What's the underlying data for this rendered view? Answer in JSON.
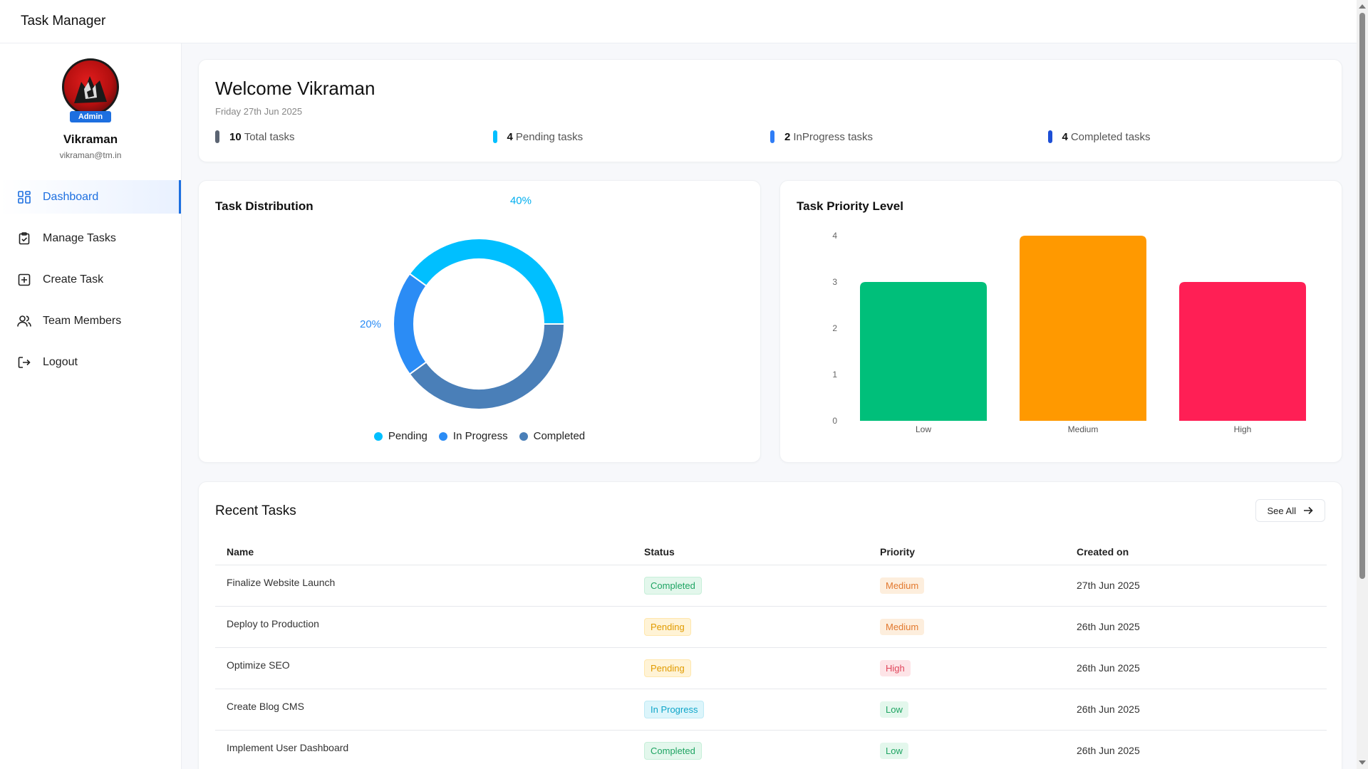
{
  "app": {
    "title": "Task Manager"
  },
  "profile": {
    "badge": "Admin",
    "name": "Vikraman",
    "email": "vikraman@tm.in"
  },
  "nav": [
    {
      "label": "Dashboard",
      "icon": "dashboard-grid-icon",
      "active": true
    },
    {
      "label": "Manage Tasks",
      "icon": "clipboard-check-icon",
      "active": false
    },
    {
      "label": "Create Task",
      "icon": "plus-square-icon",
      "active": false
    },
    {
      "label": "Team Members",
      "icon": "users-icon",
      "active": false
    },
    {
      "label": "Logout",
      "icon": "logout-icon",
      "active": false
    }
  ],
  "welcome": {
    "heading": "Welcome Vikraman",
    "date": "Friday 27th Jun 2025",
    "stats": [
      {
        "count": "10",
        "label": "Total tasks",
        "color": "#5b6472"
      },
      {
        "count": "4",
        "label": "Pending tasks",
        "color": "#00bfff"
      },
      {
        "count": "2",
        "label": "InProgress tasks",
        "color": "#2f7df6"
      },
      {
        "count": "4",
        "label": "Completed tasks",
        "color": "#1d4fd6"
      }
    ]
  },
  "distribution": {
    "title": "Task Distribution",
    "chart_data": {
      "type": "pie",
      "title": "Task Distribution",
      "labels": [
        "Pending",
        "In Progress",
        "Completed"
      ],
      "values": [
        40,
        20,
        40
      ],
      "percent_labels": [
        "40%",
        "20%",
        "40%"
      ],
      "colors": [
        "#00bfff",
        "#2b8cf5",
        "#4a7fb8"
      ],
      "legend": "bottom"
    }
  },
  "priority": {
    "title": "Task Priority Level",
    "chart_data": {
      "type": "bar",
      "title": "Task Priority Level",
      "categories": [
        "Low",
        "Medium",
        "High"
      ],
      "values": [
        3,
        4,
        3
      ],
      "colors": [
        "#00bf7a",
        "#ff9900",
        "#ff1f55"
      ],
      "yticks": [
        "0",
        "1",
        "2",
        "3",
        "4"
      ],
      "ylim": [
        0,
        4
      ]
    }
  },
  "recent": {
    "title": "Recent Tasks",
    "see_all": "See All",
    "columns": [
      "Name",
      "Status",
      "Priority",
      "Created on"
    ],
    "rows": [
      {
        "name": "Finalize Website Launch",
        "status": "Completed",
        "priority": "Medium",
        "created": "27th Jun 2025"
      },
      {
        "name": "Deploy to Production",
        "status": "Pending",
        "priority": "Medium",
        "created": "26th Jun 2025"
      },
      {
        "name": "Optimize SEO",
        "status": "Pending",
        "priority": "High",
        "created": "26th Jun 2025"
      },
      {
        "name": "Create Blog CMS",
        "status": "In Progress",
        "priority": "Low",
        "created": "26th Jun 2025"
      },
      {
        "name": "Implement User Dashboard",
        "status": "Completed",
        "priority": "Low",
        "created": "26th Jun 2025"
      }
    ]
  }
}
